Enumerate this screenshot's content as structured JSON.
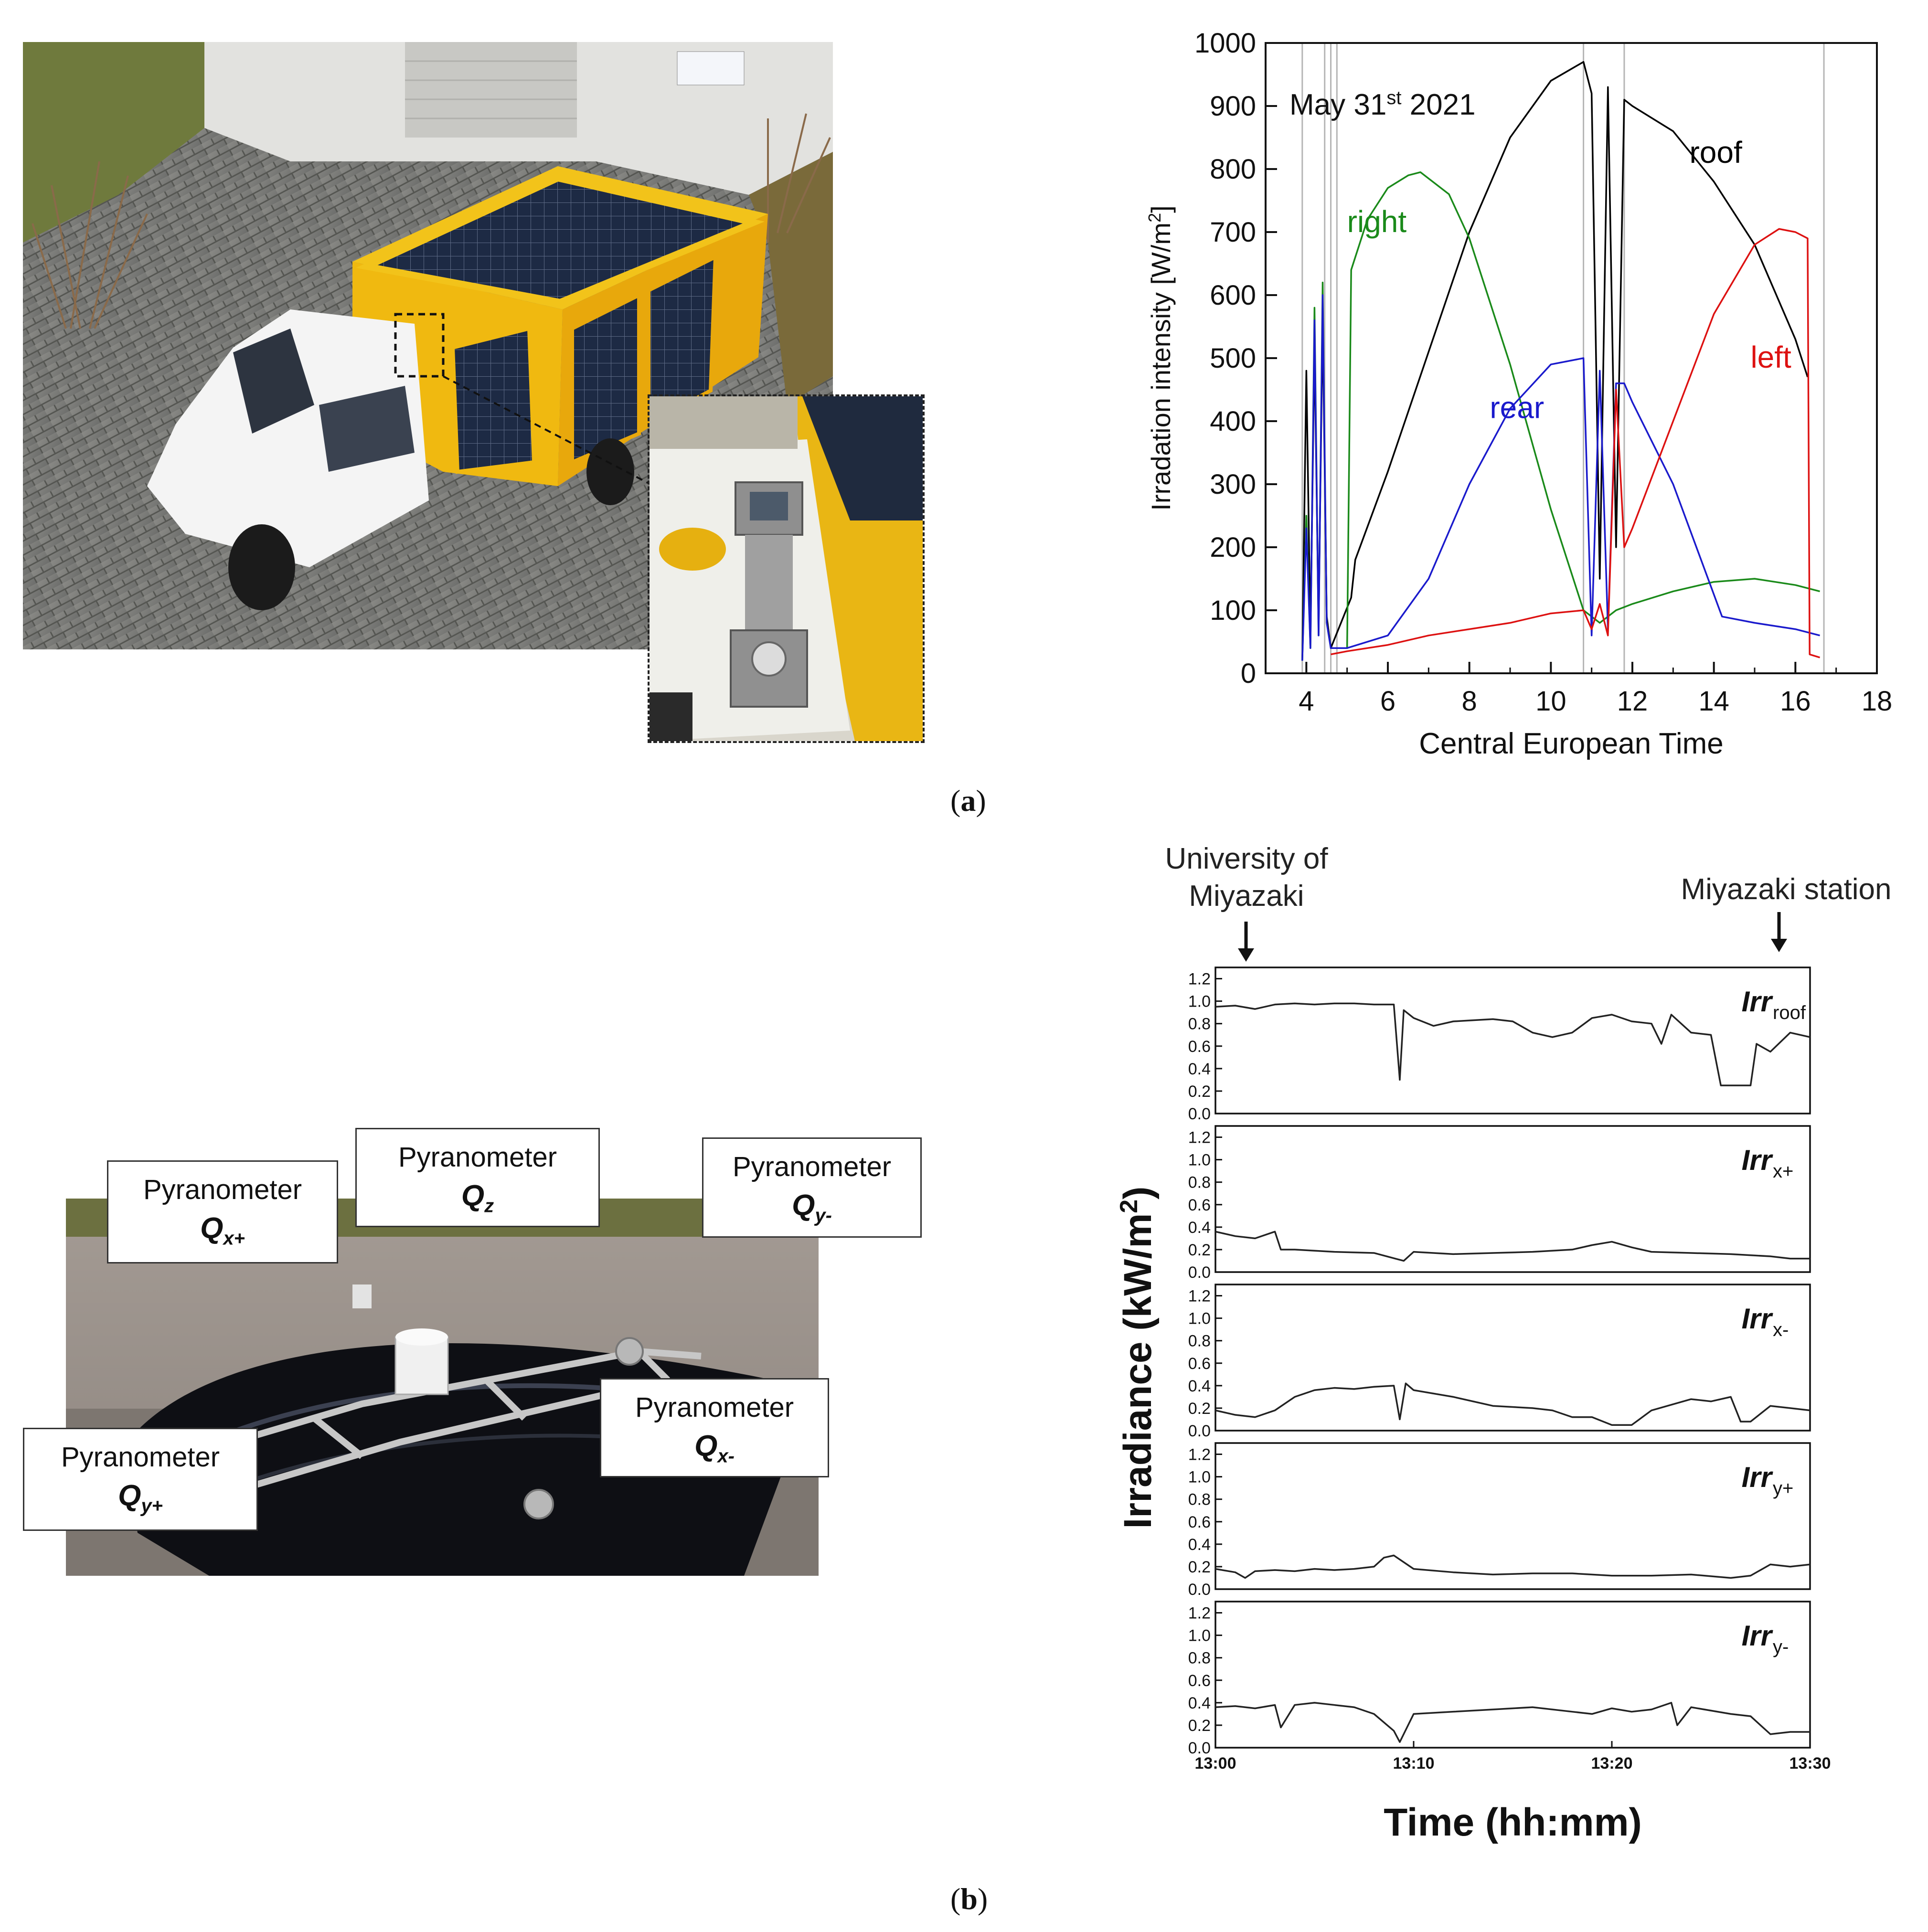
{
  "panel_labels": {
    "a": "a",
    "b": "b"
  },
  "photos": {
    "truck": "photo-truck",
    "inset": "photo-sensor-inset",
    "car_roof": "photo-car-roof"
  },
  "callouts": {
    "qx_plus": {
      "title": "Pyranometer",
      "symbol": "Q",
      "sub": "x+"
    },
    "qz": {
      "title": "Pyranometer",
      "symbol": "Q",
      "sub": "z"
    },
    "qy_minus": {
      "title": "Pyranometer",
      "symbol": "Q",
      "sub": "y-"
    },
    "qx_minus": {
      "title": "Pyranometer",
      "symbol": "Q",
      "sub": "x-"
    },
    "qy_plus": {
      "title": "Pyranometer",
      "symbol": "Q",
      "sub": "y+"
    }
  },
  "route": {
    "start": "University of\nMiyazaki",
    "end": "Miyazaki station"
  },
  "chart_data": [
    {
      "type": "line",
      "title": "",
      "annotation": {
        "base": "May 31",
        "sup": "st",
        "tail": " 2021"
      },
      "xlabel": "Central European Time",
      "ylabel": "Irradation intensity [W/m",
      "ylabel_sup": "2",
      "ylabel_tail": "]",
      "xlim": [
        3,
        18
      ],
      "ylim": [
        0,
        1000
      ],
      "xticks": [
        4,
        6,
        8,
        10,
        12,
        14,
        16,
        18
      ],
      "yticks": [
        0,
        100,
        200,
        300,
        400,
        500,
        600,
        700,
        800,
        900,
        1000
      ],
      "vlines": [
        3.9,
        4.45,
        4.6,
        4.75,
        10.8,
        11.8,
        16.7
      ],
      "series": [
        {
          "name": "roof",
          "color": "#000000",
          "x": [
            3.9,
            4.0,
            4.1,
            4.2,
            4.3,
            4.4,
            4.5,
            4.6,
            5.1,
            5.2,
            6.0,
            7.0,
            8.0,
            9.0,
            10.0,
            10.8,
            11.0,
            11.2,
            11.4,
            11.6,
            11.8,
            12.0,
            13.0,
            14.0,
            15.0,
            16.0,
            16.3
          ],
          "y": [
            20,
            480,
            60,
            520,
            80,
            560,
            90,
            40,
            120,
            180,
            320,
            510,
            700,
            850,
            940,
            970,
            920,
            150,
            930,
            200,
            910,
            900,
            860,
            780,
            680,
            530,
            470
          ]
        },
        {
          "name": "right",
          "color": "#1a8a1a",
          "x": [
            3.9,
            4.0,
            4.1,
            4.2,
            4.3,
            4.4,
            4.5,
            4.6,
            5.0,
            5.1,
            5.5,
            6.0,
            6.5,
            6.8,
            7.5,
            8.0,
            9.0,
            10.0,
            10.8,
            11.2,
            11.6,
            12.0,
            13.0,
            14.0,
            15.0,
            16.0,
            16.6
          ],
          "y": [
            20,
            250,
            40,
            580,
            60,
            620,
            80,
            40,
            40,
            640,
            720,
            770,
            790,
            795,
            760,
            690,
            490,
            260,
            100,
            80,
            100,
            110,
            130,
            145,
            150,
            140,
            130
          ]
        },
        {
          "name": "rear",
          "color": "#1a1acc",
          "x": [
            3.9,
            4.0,
            4.1,
            4.2,
            4.3,
            4.4,
            4.5,
            4.6,
            5.0,
            6.0,
            7.0,
            8.0,
            9.0,
            10.0,
            10.8,
            11.0,
            11.2,
            11.4,
            11.6,
            11.8,
            12.0,
            13.0,
            14.2,
            15.0,
            16.0,
            16.6
          ],
          "y": [
            20,
            230,
            40,
            560,
            60,
            600,
            80,
            40,
            40,
            60,
            150,
            300,
            420,
            490,
            500,
            60,
            480,
            70,
            460,
            460,
            430,
            300,
            90,
            80,
            70,
            60
          ]
        },
        {
          "name": "left",
          "color": "#dd1111",
          "x": [
            4.6,
            5.0,
            6.0,
            7.0,
            8.0,
            9.0,
            10.0,
            10.8,
            11.0,
            11.2,
            11.4,
            11.6,
            11.8,
            12.0,
            13.0,
            14.0,
            15.0,
            15.6,
            16.0,
            16.3,
            16.35,
            16.6
          ],
          "y": [
            30,
            35,
            45,
            60,
            70,
            80,
            95,
            100,
            70,
            110,
            60,
            450,
            200,
            230,
            400,
            570,
            680,
            705,
            700,
            690,
            30,
            25
          ]
        }
      ],
      "series_labels": [
        "right",
        "roof",
        "rear",
        "left"
      ]
    },
    {
      "type": "line",
      "title": "",
      "xlabel": "Time (hh:mm)",
      "ylabel": "Irradiance (kW/m",
      "ylabel_sup": "2",
      "ylabel_tail": ")",
      "xticks": [
        "13:00",
        "13:10",
        "13:20",
        "13:30"
      ],
      "xlim_minutes": [
        0,
        30
      ],
      "yticks": [
        "0.0",
        "0.2",
        "0.4",
        "0.6",
        "0.8",
        "1.0",
        "1.2"
      ],
      "ylim": [
        0,
        1.3
      ],
      "panels": [
        {
          "name": "Irr",
          "sub": "roof",
          "x": [
            0,
            1,
            2,
            3,
            4,
            5,
            6,
            7,
            8,
            9,
            9.3,
            9.5,
            10,
            11,
            12,
            13,
            14,
            15,
            16,
            17,
            18,
            19,
            20,
            21,
            22,
            22.5,
            23,
            24,
            25,
            25.5,
            26,
            27,
            27.3,
            28,
            29,
            30
          ],
          "y": [
            0.95,
            0.96,
            0.93,
            0.97,
            0.98,
            0.97,
            0.98,
            0.98,
            0.97,
            0.97,
            0.3,
            0.92,
            0.85,
            0.78,
            0.82,
            0.83,
            0.84,
            0.82,
            0.72,
            0.68,
            0.72,
            0.85,
            0.88,
            0.82,
            0.8,
            0.62,
            0.88,
            0.72,
            0.7,
            0.25,
            0.25,
            0.25,
            0.62,
            0.55,
            0.72,
            0.68
          ]
        },
        {
          "name": "Irr",
          "sub": "x+",
          "x": [
            0,
            1,
            2,
            3,
            3.3,
            4,
            6,
            8,
            9.5,
            10,
            12,
            14,
            16,
            18,
            19,
            20,
            21,
            22,
            24,
            26,
            28,
            29,
            30
          ],
          "y": [
            0.36,
            0.32,
            0.3,
            0.36,
            0.2,
            0.2,
            0.18,
            0.17,
            0.1,
            0.18,
            0.16,
            0.17,
            0.18,
            0.2,
            0.24,
            0.27,
            0.22,
            0.18,
            0.17,
            0.16,
            0.14,
            0.12,
            0.12
          ]
        },
        {
          "name": "Irr",
          "sub": "x-",
          "x": [
            0,
            1,
            2,
            3,
            4,
            5,
            6,
            7,
            8,
            9,
            9.3,
            9.6,
            10,
            12,
            14,
            16,
            17,
            18,
            19,
            20,
            21,
            22,
            24,
            25,
            26,
            26.5,
            27,
            28,
            29,
            30
          ],
          "y": [
            0.18,
            0.14,
            0.12,
            0.18,
            0.3,
            0.36,
            0.38,
            0.37,
            0.39,
            0.4,
            0.1,
            0.42,
            0.36,
            0.3,
            0.22,
            0.2,
            0.18,
            0.12,
            0.12,
            0.05,
            0.05,
            0.18,
            0.28,
            0.26,
            0.3,
            0.08,
            0.08,
            0.22,
            0.2,
            0.18
          ]
        },
        {
          "name": "Irr",
          "sub": "y+",
          "x": [
            0,
            1,
            1.5,
            2,
            3,
            4,
            5,
            6,
            7,
            8,
            8.5,
            9,
            10,
            12,
            14,
            16,
            18,
            20,
            22,
            24,
            26,
            27,
            28,
            29,
            30
          ],
          "y": [
            0.18,
            0.15,
            0.1,
            0.16,
            0.17,
            0.16,
            0.18,
            0.17,
            0.18,
            0.2,
            0.28,
            0.3,
            0.18,
            0.15,
            0.13,
            0.14,
            0.14,
            0.12,
            0.12,
            0.13,
            0.1,
            0.12,
            0.22,
            0.2,
            0.22
          ]
        },
        {
          "name": "Irr",
          "sub": "y-",
          "x": [
            0,
            1,
            2,
            3,
            3.3,
            4,
            5,
            6,
            7,
            8,
            9,
            9.3,
            10,
            12,
            14,
            16,
            18,
            19,
            20,
            21,
            22,
            23,
            23.3,
            24,
            26,
            27,
            28,
            29,
            30
          ],
          "y": [
            0.36,
            0.37,
            0.35,
            0.38,
            0.18,
            0.38,
            0.4,
            0.38,
            0.36,
            0.3,
            0.15,
            0.05,
            0.3,
            0.32,
            0.34,
            0.36,
            0.32,
            0.3,
            0.35,
            0.32,
            0.34,
            0.4,
            0.2,
            0.36,
            0.3,
            0.28,
            0.12,
            0.14,
            0.14
          ]
        }
      ]
    }
  ]
}
